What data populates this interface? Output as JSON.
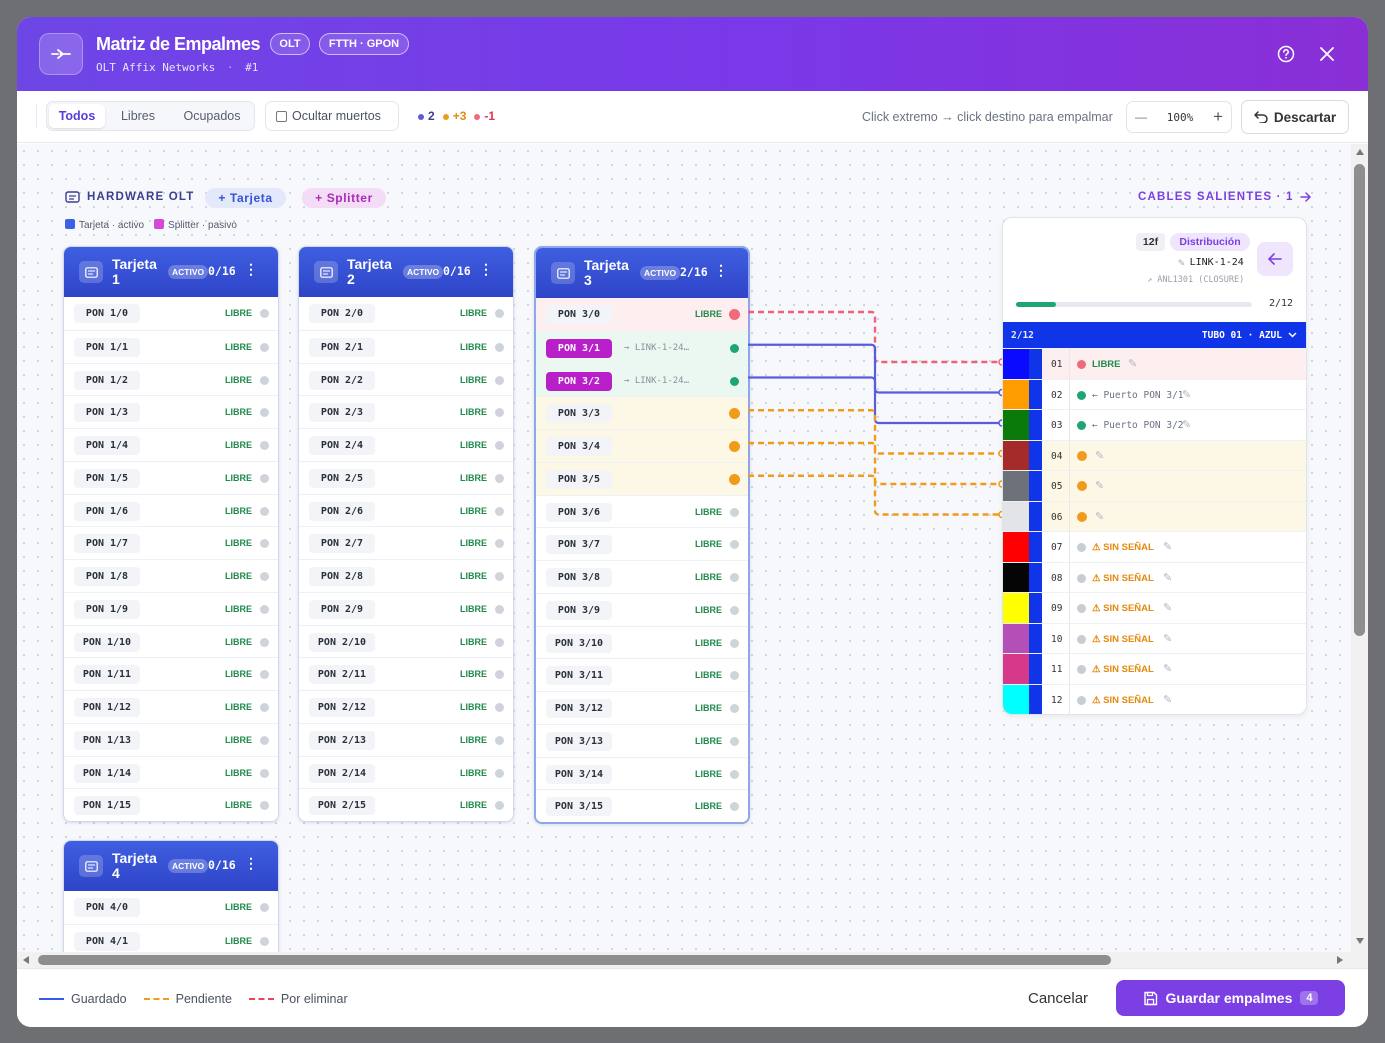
{
  "header": {
    "title": "Matriz de Empalmes",
    "badge_olt": "OLT",
    "badge_ftth": "FTTH · GPON",
    "subtitle": "OLT Affix Networks",
    "subtitle_sep": "·",
    "subtitle_id": "#1"
  },
  "toolbar": {
    "filters": [
      "Todos",
      "Libres",
      "Ocupados"
    ],
    "active_filter": "Todos",
    "hide_dead_label": "Ocultar muertos",
    "count_saved": "2",
    "count_pending": "+3",
    "count_delete": "-1",
    "hint": "Click extremo → click destino para empalmar",
    "zoom": "100%",
    "zoom_minus": "—",
    "zoom_plus": "+",
    "discard_label": "Descartar"
  },
  "hardware": {
    "title": "HARDWARE OLT",
    "add_card": "+ Tarjeta",
    "add_splitter": "+ Splitter",
    "legend_card": "Tarjeta · activo",
    "legend_splitter": "Splitter · pasivo"
  },
  "colors": {
    "accent": "#7b3fe4",
    "card_header": "#3452d6",
    "saved": "#5a5ce0",
    "pending": "#f29a1a",
    "delete": "#f06a7a",
    "free": "#1f8a4c"
  },
  "cards": [
    {
      "title": "Tarjeta",
      "number": "1",
      "status": "ACTIVO",
      "count": "0/16",
      "ports": [
        {
          "name": "PON 1/0",
          "state": "LIBRE"
        },
        {
          "name": "PON 1/1",
          "state": "LIBRE"
        },
        {
          "name": "PON 1/2",
          "state": "LIBRE"
        },
        {
          "name": "PON 1/3",
          "state": "LIBRE"
        },
        {
          "name": "PON 1/4",
          "state": "LIBRE"
        },
        {
          "name": "PON 1/5",
          "state": "LIBRE"
        },
        {
          "name": "PON 1/6",
          "state": "LIBRE"
        },
        {
          "name": "PON 1/7",
          "state": "LIBRE"
        },
        {
          "name": "PON 1/8",
          "state": "LIBRE"
        },
        {
          "name": "PON 1/9",
          "state": "LIBRE"
        },
        {
          "name": "PON 1/10",
          "state": "LIBRE"
        },
        {
          "name": "PON 1/11",
          "state": "LIBRE"
        },
        {
          "name": "PON 1/12",
          "state": "LIBRE"
        },
        {
          "name": "PON 1/13",
          "state": "LIBRE"
        },
        {
          "name": "PON 1/14",
          "state": "LIBRE"
        },
        {
          "name": "PON 1/15",
          "state": "LIBRE"
        }
      ]
    },
    {
      "title": "Tarjeta",
      "number": "2",
      "status": "ACTIVO",
      "count": "0/16",
      "ports": [
        {
          "name": "PON 2/0",
          "state": "LIBRE"
        },
        {
          "name": "PON 2/1",
          "state": "LIBRE"
        },
        {
          "name": "PON 2/2",
          "state": "LIBRE"
        },
        {
          "name": "PON 2/3",
          "state": "LIBRE"
        },
        {
          "name": "PON 2/4",
          "state": "LIBRE"
        },
        {
          "name": "PON 2/5",
          "state": "LIBRE"
        },
        {
          "name": "PON 2/6",
          "state": "LIBRE"
        },
        {
          "name": "PON 2/7",
          "state": "LIBRE"
        },
        {
          "name": "PON 2/8",
          "state": "LIBRE"
        },
        {
          "name": "PON 2/9",
          "state": "LIBRE"
        },
        {
          "name": "PON 2/10",
          "state": "LIBRE"
        },
        {
          "name": "PON 2/11",
          "state": "LIBRE"
        },
        {
          "name": "PON 2/12",
          "state": "LIBRE"
        },
        {
          "name": "PON 2/13",
          "state": "LIBRE"
        },
        {
          "name": "PON 2/14",
          "state": "LIBRE"
        },
        {
          "name": "PON 2/15",
          "state": "LIBRE"
        }
      ]
    },
    {
      "title": "Tarjeta",
      "number": "3",
      "status": "ACTIVO",
      "count": "2/16",
      "ports": [
        {
          "name": "PON 3/0",
          "state": "LIBRE",
          "mark": "delete"
        },
        {
          "name": "PON 3/1",
          "state": "",
          "link": "→ LINK-1-24…",
          "mark": "saved"
        },
        {
          "name": "PON 3/2",
          "state": "",
          "link": "→ LINK-1-24…",
          "mark": "saved"
        },
        {
          "name": "PON 3/3",
          "state": "",
          "mark": "pending"
        },
        {
          "name": "PON 3/4",
          "state": "",
          "mark": "pending"
        },
        {
          "name": "PON 3/5",
          "state": "",
          "mark": "pending"
        },
        {
          "name": "PON 3/6",
          "state": "LIBRE"
        },
        {
          "name": "PON 3/7",
          "state": "LIBRE"
        },
        {
          "name": "PON 3/8",
          "state": "LIBRE"
        },
        {
          "name": "PON 3/9",
          "state": "LIBRE"
        },
        {
          "name": "PON 3/10",
          "state": "LIBRE"
        },
        {
          "name": "PON 3/11",
          "state": "LIBRE"
        },
        {
          "name": "PON 3/12",
          "state": "LIBRE"
        },
        {
          "name": "PON 3/13",
          "state": "LIBRE"
        },
        {
          "name": "PON 3/14",
          "state": "LIBRE"
        },
        {
          "name": "PON 3/15",
          "state": "LIBRE"
        }
      ]
    },
    {
      "title": "Tarjeta",
      "number": "4",
      "status": "ACTIVO",
      "count": "0/16",
      "ports": [
        {
          "name": "PON 4/0",
          "state": "LIBRE"
        },
        {
          "name": "PON 4/1",
          "state": "LIBRE"
        }
      ]
    }
  ],
  "cables": {
    "title": "CABLES SALIENTES · 1",
    "fiber_count": "12f",
    "type": "Distribución",
    "name": "LINK-1-24",
    "route": "ANL1301",
    "route_type": "(CLOSURE)",
    "used": "2/12",
    "used_fraction": 0.17,
    "tube_used": "2/12",
    "tube_label": "TUBO 01 · AZUL",
    "fibers": [
      {
        "num": "01",
        "color": "#0a0aff",
        "label": "LIBRE",
        "state": "delete"
      },
      {
        "num": "02",
        "color": "#ff9c00",
        "label": "← Puerto PON 3/1",
        "state": "saved"
      },
      {
        "num": "03",
        "color": "#0a7a0a",
        "label": "← Puerto PON 3/2",
        "state": "saved"
      },
      {
        "num": "04",
        "color": "#a52a2a",
        "label": "",
        "state": "pending"
      },
      {
        "num": "05",
        "color": "#6d727a",
        "label": "",
        "state": "pending"
      },
      {
        "num": "06",
        "color": "#e2e4e8",
        "label": "",
        "state": "pending"
      },
      {
        "num": "07",
        "color": "#ff0000",
        "label": "⚠ SIN SEÑAL",
        "state": "dead"
      },
      {
        "num": "08",
        "color": "#050505",
        "label": "⚠ SIN SEÑAL",
        "state": "dead"
      },
      {
        "num": "09",
        "color": "#ffff00",
        "label": "⚠ SIN SEÑAL",
        "state": "dead"
      },
      {
        "num": "10",
        "color": "#b44fb8",
        "label": "⚠ SIN SEÑAL",
        "state": "dead"
      },
      {
        "num": "11",
        "color": "#d6388a",
        "label": "⚠ SIN SEÑAL",
        "state": "dead"
      },
      {
        "num": "12",
        "color": "#00ffff",
        "label": "⚠ SIN SEÑAL",
        "state": "dead"
      }
    ]
  },
  "footer": {
    "legend_saved": "Guardado",
    "legend_pending": "Pendiente",
    "legend_delete": "Por eliminar",
    "cancel": "Cancelar",
    "save": "Guardar empalmes",
    "save_count": "4"
  }
}
